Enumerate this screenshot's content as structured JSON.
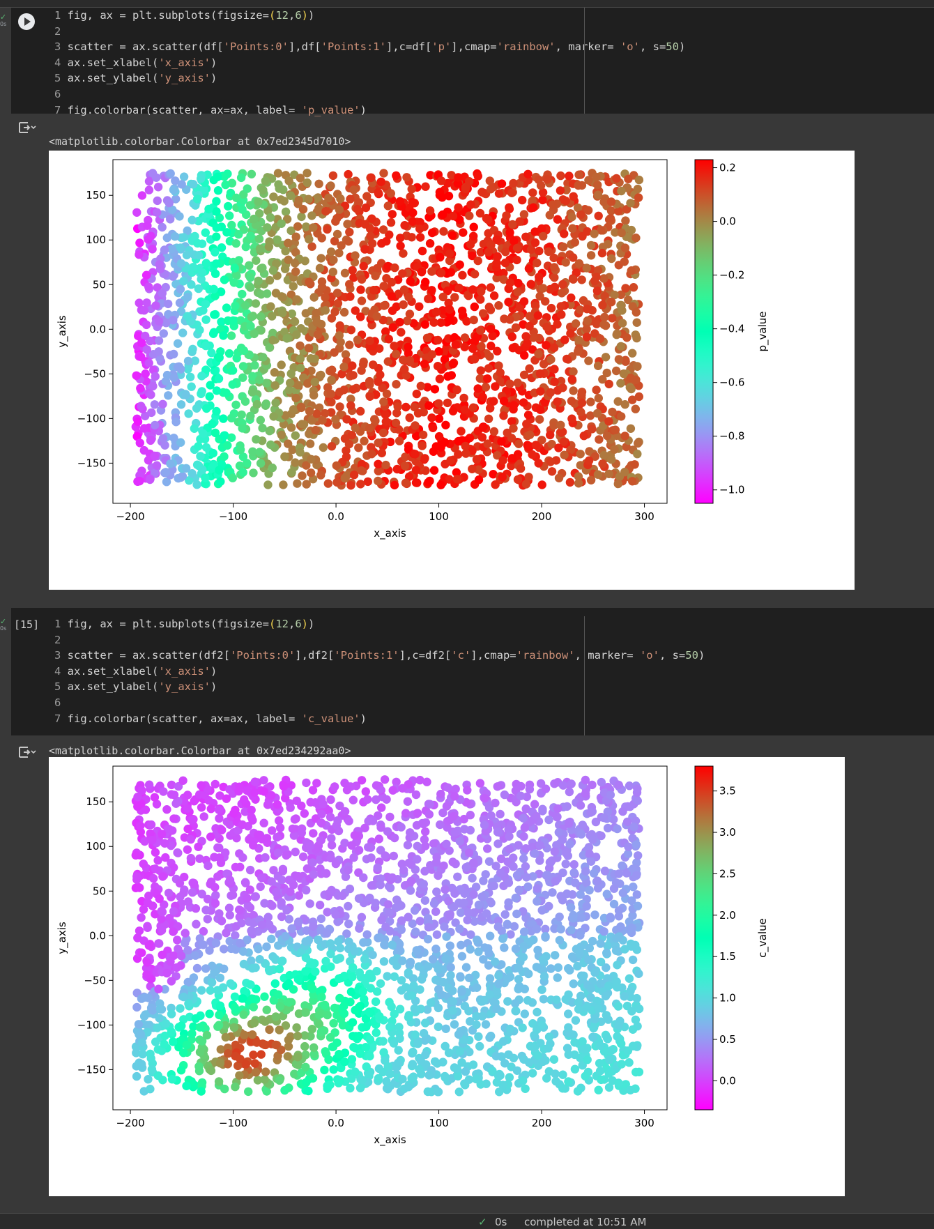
{
  "cells": [
    {
      "exec_label": "",
      "status_time": "0s",
      "code_lines": [
        [
          [
            "1 ",
            "ln"
          ],
          [
            "fig, ax = plt.subplots(figsize=",
            ""
          ],
          [
            "(",
            "b"
          ],
          [
            "12",
            "n"
          ],
          [
            ",",
            ""
          ],
          [
            "6",
            "n"
          ],
          [
            ")",
            "b"
          ],
          [
            ")",
            ""
          ]
        ],
        [
          [
            "2",
            "ln"
          ]
        ],
        [
          [
            "3 ",
            "ln"
          ],
          [
            "scatter = ax.scatter(df[",
            ""
          ],
          [
            "'Points:0'",
            "s"
          ],
          [
            "],df[",
            ""
          ],
          [
            "'Points:1'",
            "s"
          ],
          [
            "],c=df[",
            ""
          ],
          [
            "'p'",
            "s"
          ],
          [
            "],cmap=",
            ""
          ],
          [
            "'rainbow'",
            "s"
          ],
          [
            ", marker= ",
            ""
          ],
          [
            "'o'",
            "s"
          ],
          [
            ", s=",
            ""
          ],
          [
            "50",
            "n"
          ],
          [
            ")",
            ""
          ]
        ],
        [
          [
            "4 ",
            "ln"
          ],
          [
            "ax.set_xlabel(",
            ""
          ],
          [
            "'x_axis'",
            "s"
          ],
          [
            ")",
            ""
          ]
        ],
        [
          [
            "5 ",
            "ln"
          ],
          [
            "ax.set_ylabel(",
            ""
          ],
          [
            "'y_axis'",
            "s"
          ],
          [
            ")",
            ""
          ]
        ],
        [
          [
            "6",
            "ln"
          ]
        ],
        [
          [
            "7 ",
            "ln"
          ],
          [
            "fig.colorbar(scatter, ax=ax, label= ",
            ""
          ],
          [
            "'p_value'",
            "s"
          ],
          [
            ")",
            ""
          ]
        ]
      ],
      "output_text": "<matplotlib.colorbar.Colorbar at 0x7ed2345d7010>"
    },
    {
      "exec_label": "[15]",
      "status_time": "0s",
      "code_lines": [
        [
          [
            "1 ",
            "ln"
          ],
          [
            "fig, ax = plt.subplots(figsize=",
            ""
          ],
          [
            "(",
            "b"
          ],
          [
            "12",
            "n"
          ],
          [
            ",",
            ""
          ],
          [
            "6",
            "n"
          ],
          [
            ")",
            "b"
          ],
          [
            ")",
            ""
          ]
        ],
        [
          [
            "2",
            "ln"
          ]
        ],
        [
          [
            "3 ",
            "ln"
          ],
          [
            "scatter = ax.scatter(df2[",
            ""
          ],
          [
            "'Points:0'",
            "s"
          ],
          [
            "],df2[",
            ""
          ],
          [
            "'Points:1'",
            "s"
          ],
          [
            "],c=df2[",
            ""
          ],
          [
            "'c'",
            "s"
          ],
          [
            "],cmap=",
            ""
          ],
          [
            "'rainbow'",
            "s"
          ],
          [
            ", marker= ",
            ""
          ],
          [
            "'o'",
            "s"
          ],
          [
            ", s=",
            ""
          ],
          [
            "50",
            "n"
          ],
          [
            ")",
            ""
          ]
        ],
        [
          [
            "4 ",
            "ln"
          ],
          [
            "ax.set_xlabel(",
            ""
          ],
          [
            "'x_axis'",
            "s"
          ],
          [
            ")",
            ""
          ]
        ],
        [
          [
            "5 ",
            "ln"
          ],
          [
            "ax.set_ylabel(",
            ""
          ],
          [
            "'y_axis'",
            "s"
          ],
          [
            ")",
            ""
          ]
        ],
        [
          [
            "6",
            "ln"
          ]
        ],
        [
          [
            "7 ",
            "ln"
          ],
          [
            "fig.colorbar(scatter, ax=ax, label= ",
            ""
          ],
          [
            "'c_value'",
            "s"
          ],
          [
            ")",
            ""
          ]
        ]
      ],
      "output_text": "<matplotlib.colorbar.Colorbar at 0x7ed234292aa0>"
    }
  ],
  "chart_data": [
    {
      "type": "scatter",
      "xlabel": "x_axis",
      "ylabel": "y_axis",
      "xlim": [
        -217,
        322
      ],
      "ylim": [
        -195,
        190
      ],
      "xticks": [
        -200,
        -100,
        0,
        100,
        200,
        300
      ],
      "yticks": [
        -150,
        -100,
        -50,
        0,
        50,
        100,
        150
      ],
      "colormap": "rainbow",
      "marker": "o",
      "colorbar": {
        "label": "p_value",
        "range": [
          -1.05,
          0.23
        ],
        "ticks": [
          0.2,
          0.0,
          -0.2,
          -0.4,
          -0.6,
          -0.8,
          -1.0
        ]
      },
      "points": {
        "count": 2600,
        "x_range": [
          -195,
          295
        ],
        "y_range": [
          -175,
          175
        ],
        "color_by": "p_value",
        "pattern": [
          [
            -195,
            -1.0
          ],
          [
            -150,
            -0.7
          ],
          [
            -100,
            -0.3
          ],
          [
            -60,
            -0.05
          ],
          [
            0,
            0.1
          ],
          [
            100,
            0.2
          ],
          [
            200,
            0.15
          ],
          [
            295,
            0.05
          ]
        ]
      }
    },
    {
      "type": "scatter",
      "xlabel": "x_axis",
      "ylabel": "y_axis",
      "xlim": [
        -217,
        322
      ],
      "ylim": [
        -195,
        190
      ],
      "xticks": [
        -200,
        -100,
        0,
        100,
        200,
        300
      ],
      "yticks": [
        -150,
        -100,
        -50,
        0,
        50,
        100,
        150
      ],
      "colormap": "rainbow",
      "marker": "o",
      "colorbar": {
        "label": "c_value",
        "range": [
          -0.35,
          3.8
        ],
        "ticks": [
          3.5,
          3.0,
          2.5,
          2.0,
          1.5,
          1.0,
          0.5,
          0.0
        ]
      },
      "points": {
        "count": 2600,
        "x_range": [
          -195,
          295
        ],
        "y_range": [
          -175,
          175
        ],
        "color_by": "c_value",
        "pattern": {
          "upper_left": 0.0,
          "lower_left_hot": 3.2,
          "lower_middle": 1.6,
          "lower_right": 0.9,
          "upper_right": 0.3
        }
      }
    }
  ],
  "status_bar": {
    "check": "✓",
    "time": "0s",
    "message": "completed at 10:51 AM"
  }
}
